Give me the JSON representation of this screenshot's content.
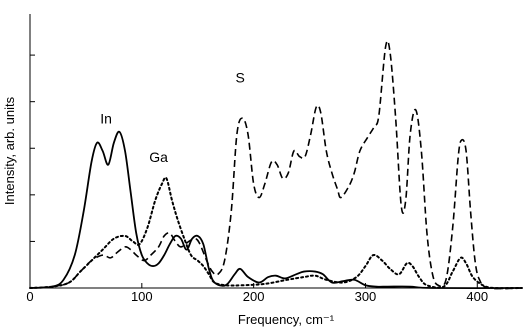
{
  "chart_data": {
    "type": "line",
    "title": "",
    "xlabel": "Frequency, cm⁻¹",
    "ylabel": "Intensity, arb. units",
    "xlim": [
      0,
      440
    ],
    "ylim": [
      0,
      1.0
    ],
    "x_ticks": [
      0,
      100,
      200,
      300,
      400
    ],
    "y_ticks": [
      0.17,
      0.34,
      0.51,
      0.68,
      0.85
    ],
    "grid": false,
    "legend": "none",
    "annotations": [
      {
        "text": "In",
        "x": 68,
        "y": 0.6
      },
      {
        "text": "Ga",
        "x": 115,
        "y": 0.46
      },
      {
        "text": "S",
        "x": 188,
        "y": 0.75
      }
    ],
    "series": [
      {
        "style": "solid",
        "color": "#000000",
        "points": [
          [
            0,
            0
          ],
          [
            20,
            0.005
          ],
          [
            30,
            0.03
          ],
          [
            40,
            0.12
          ],
          [
            48,
            0.28
          ],
          [
            55,
            0.46
          ],
          [
            60,
            0.53
          ],
          [
            65,
            0.5
          ],
          [
            70,
            0.45
          ],
          [
            75,
            0.53
          ],
          [
            80,
            0.57
          ],
          [
            85,
            0.5
          ],
          [
            90,
            0.35
          ],
          [
            95,
            0.2
          ],
          [
            100,
            0.12
          ],
          [
            105,
            0.09
          ],
          [
            110,
            0.08
          ],
          [
            115,
            0.09
          ],
          [
            120,
            0.12
          ],
          [
            125,
            0.16
          ],
          [
            130,
            0.19
          ],
          [
            135,
            0.18
          ],
          [
            140,
            0.14
          ],
          [
            145,
            0.18
          ],
          [
            150,
            0.19
          ],
          [
            155,
            0.16
          ],
          [
            160,
            0.07
          ],
          [
            165,
            0.02
          ],
          [
            175,
            0.01
          ],
          [
            183,
            0.05
          ],
          [
            188,
            0.07
          ],
          [
            195,
            0.04
          ],
          [
            205,
            0.02
          ],
          [
            213,
            0.04
          ],
          [
            220,
            0.045
          ],
          [
            228,
            0.035
          ],
          [
            238,
            0.05
          ],
          [
            245,
            0.06
          ],
          [
            255,
            0.06
          ],
          [
            262,
            0.05
          ],
          [
            270,
            0.02
          ],
          [
            280,
            0.025
          ],
          [
            290,
            0.03
          ],
          [
            300,
            0.01
          ],
          [
            310,
            0.005
          ],
          [
            320,
            0.005
          ],
          [
            340,
            0.005
          ],
          [
            360,
            0
          ],
          [
            440,
            0
          ]
        ]
      },
      {
        "style": "dashed",
        "color": "#000000",
        "points": [
          [
            0,
            0
          ],
          [
            20,
            0.005
          ],
          [
            35,
            0.02
          ],
          [
            45,
            0.06
          ],
          [
            55,
            0.1
          ],
          [
            65,
            0.12
          ],
          [
            72,
            0.11
          ],
          [
            78,
            0.13
          ],
          [
            85,
            0.15
          ],
          [
            90,
            0.14
          ],
          [
            95,
            0.12
          ],
          [
            102,
            0.1
          ],
          [
            108,
            0.12
          ],
          [
            115,
            0.15
          ],
          [
            120,
            0.19
          ],
          [
            125,
            0.2
          ],
          [
            130,
            0.17
          ],
          [
            135,
            0.15
          ],
          [
            142,
            0.17
          ],
          [
            148,
            0.18
          ],
          [
            152,
            0.16
          ],
          [
            158,
            0.1
          ],
          [
            163,
            0.06
          ],
          [
            168,
            0.05
          ],
          [
            174,
            0.1
          ],
          [
            180,
            0.28
          ],
          [
            185,
            0.56
          ],
          [
            190,
            0.62
          ],
          [
            195,
            0.56
          ],
          [
            200,
            0.38
          ],
          [
            205,
            0.33
          ],
          [
            210,
            0.38
          ],
          [
            216,
            0.46
          ],
          [
            221,
            0.45
          ],
          [
            226,
            0.4
          ],
          [
            231,
            0.42
          ],
          [
            236,
            0.5
          ],
          [
            241,
            0.48
          ],
          [
            246,
            0.48
          ],
          [
            251,
            0.56
          ],
          [
            256,
            0.66
          ],
          [
            260,
            0.64
          ],
          [
            265,
            0.5
          ],
          [
            270,
            0.42
          ],
          [
            275,
            0.36
          ],
          [
            278,
            0.33
          ],
          [
            285,
            0.37
          ],
          [
            290,
            0.42
          ],
          [
            295,
            0.5
          ],
          [
            302,
            0.55
          ],
          [
            308,
            0.59
          ],
          [
            312,
            0.63
          ],
          [
            318,
            0.88
          ],
          [
            322,
            0.86
          ],
          [
            327,
            0.62
          ],
          [
            332,
            0.3
          ],
          [
            336,
            0.32
          ],
          [
            340,
            0.56
          ],
          [
            345,
            0.65
          ],
          [
            350,
            0.5
          ],
          [
            355,
            0.2
          ],
          [
            360,
            0.05
          ],
          [
            365,
            0.01
          ],
          [
            372,
            0.03
          ],
          [
            378,
            0.22
          ],
          [
            383,
            0.48
          ],
          [
            386,
            0.54
          ],
          [
            390,
            0.5
          ],
          [
            394,
            0.28
          ],
          [
            398,
            0.1
          ],
          [
            402,
            0.03
          ],
          [
            410,
            0
          ],
          [
            440,
            0
          ]
        ]
      },
      {
        "style": "dotted",
        "color": "#000000",
        "points": [
          [
            0,
            0
          ],
          [
            20,
            0.005
          ],
          [
            35,
            0.02
          ],
          [
            45,
            0.06
          ],
          [
            55,
            0.1
          ],
          [
            65,
            0.14
          ],
          [
            75,
            0.18
          ],
          [
            85,
            0.19
          ],
          [
            92,
            0.17
          ],
          [
            98,
            0.16
          ],
          [
            105,
            0.22
          ],
          [
            112,
            0.32
          ],
          [
            118,
            0.38
          ],
          [
            122,
            0.4
          ],
          [
            127,
            0.32
          ],
          [
            132,
            0.25
          ],
          [
            138,
            0.18
          ],
          [
            144,
            0.12
          ],
          [
            150,
            0.1
          ],
          [
            155,
            0.08
          ],
          [
            160,
            0.05
          ],
          [
            165,
            0.02
          ],
          [
            175,
            0.01
          ],
          [
            190,
            0.01
          ],
          [
            210,
            0.015
          ],
          [
            230,
            0.03
          ],
          [
            245,
            0.04
          ],
          [
            255,
            0.045
          ],
          [
            265,
            0.03
          ],
          [
            280,
            0.02
          ],
          [
            292,
            0.04
          ],
          [
            300,
            0.08
          ],
          [
            307,
            0.12
          ],
          [
            315,
            0.1
          ],
          [
            322,
            0.07
          ],
          [
            330,
            0.05
          ],
          [
            337,
            0.09
          ],
          [
            342,
            0.08
          ],
          [
            348,
            0.04
          ],
          [
            355,
            0.01
          ],
          [
            370,
            0.005
          ],
          [
            378,
            0.06
          ],
          [
            385,
            0.11
          ],
          [
            390,
            0.09
          ],
          [
            396,
            0.04
          ],
          [
            405,
            0.01
          ],
          [
            415,
            0
          ],
          [
            440,
            0
          ]
        ]
      }
    ]
  }
}
